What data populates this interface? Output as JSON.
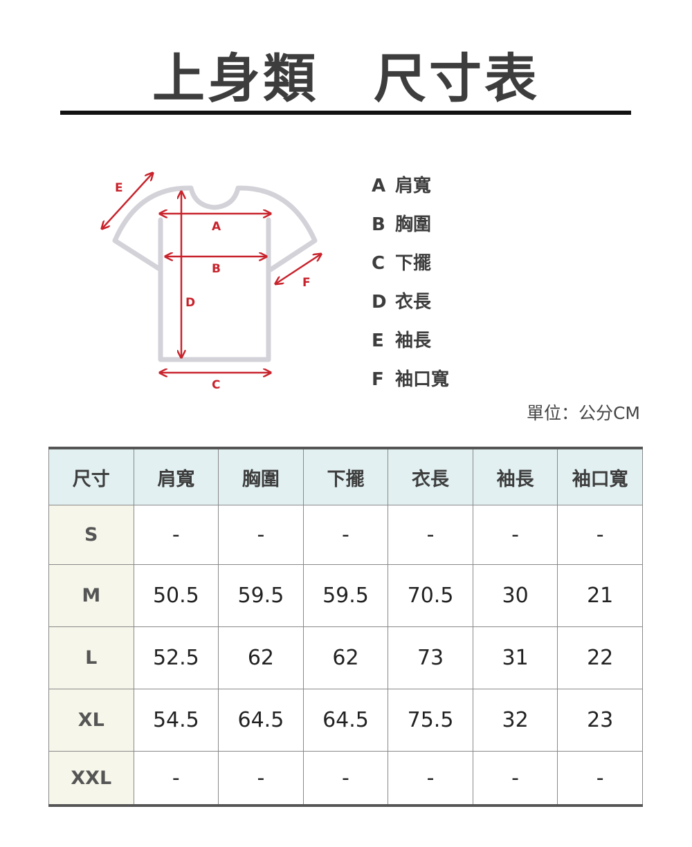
{
  "title": "上身類　尺寸表",
  "diagram": {
    "labels": {
      "A": "A",
      "B": "B",
      "C": "C",
      "D": "D",
      "E": "E",
      "F": "F"
    },
    "accent": "#c8232c",
    "outline": "#d2d2d8"
  },
  "legend": [
    {
      "key": "A",
      "label": "肩寬"
    },
    {
      "key": "B",
      "label": "胸圍"
    },
    {
      "key": "C",
      "label": "下擺"
    },
    {
      "key": "D",
      "label": "衣長"
    },
    {
      "key": "E",
      "label": "袖長"
    },
    {
      "key": "F",
      "label": "袖口寬"
    }
  ],
  "unit": "單位：公分CM",
  "table": {
    "headers": [
      "尺寸",
      "肩寬",
      "胸圍",
      "下擺",
      "衣長",
      "袖長",
      "袖口寬"
    ],
    "rows": [
      [
        "S",
        "-",
        "-",
        "-",
        "-",
        "-",
        "-"
      ],
      [
        "M",
        "50.5",
        "59.5",
        "59.5",
        "70.5",
        "30",
        "21"
      ],
      [
        "L",
        "52.5",
        "62",
        "62",
        "73",
        "31",
        "22"
      ],
      [
        "XL",
        "54.5",
        "64.5",
        "64.5",
        "75.5",
        "32",
        "23"
      ],
      [
        "XXL",
        "-",
        "-",
        "-",
        "-",
        "-",
        "-"
      ]
    ]
  }
}
